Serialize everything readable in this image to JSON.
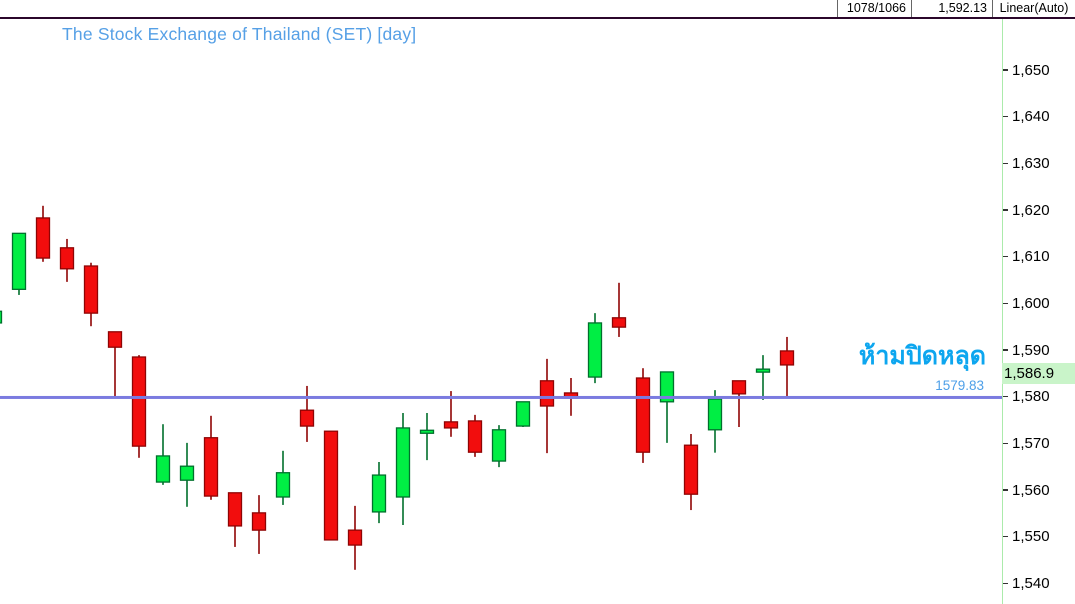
{
  "toolbar": {
    "high_low": "1078/1066",
    "last_value": "1,592.13",
    "scale_mode": "Linear(Auto)"
  },
  "colors": {
    "up_fill": "#00ee44",
    "up_stroke": "#00702c",
    "down_fill": "#f20d0d",
    "down_stroke": "#8f0404",
    "support_line": "#7b7be0",
    "axis_line": "#abebab",
    "badge_bg": "#c9f4c9",
    "title_blue": "#56a0e6",
    "annotation_blue": "#0da6ef"
  },
  "chart_data": {
    "type": "candlestick",
    "title": "The Stock Exchange of Thailand (SET) [day]",
    "annotation": {
      "text": "ห้ามปิดหลุด"
    },
    "horizontal_line": {
      "value": 1579.83,
      "label": "1579.83"
    },
    "last_price": 1586.9,
    "last_price_label": "1,586.9",
    "ylim": [
      1536,
      1661
    ],
    "grid": false,
    "y_axis": {
      "ticks": [
        {
          "v": 1650,
          "label": "1,650"
        },
        {
          "v": 1640,
          "label": "1,640"
        },
        {
          "v": 1630,
          "label": "1,630"
        },
        {
          "v": 1620,
          "label": "1,620"
        },
        {
          "v": 1610,
          "label": "1,610"
        },
        {
          "v": 1600,
          "label": "1,600"
        },
        {
          "v": 1590,
          "label": "1,590"
        },
        {
          "v": 1580,
          "label": "1,580"
        },
        {
          "v": 1570,
          "label": "1,570"
        },
        {
          "v": 1560,
          "label": "1,560"
        },
        {
          "v": 1550,
          "label": "1,550"
        },
        {
          "v": 1540,
          "label": "1,540"
        }
      ]
    },
    "candles": [
      {
        "o": 1595.8,
        "h": 1598.3,
        "l": 1595.8,
        "c": 1598.3,
        "d": "up"
      },
      {
        "o": 1603.0,
        "h": 1615.0,
        "l": 1601.8,
        "c": 1615.0,
        "d": "up"
      },
      {
        "o": 1618.3,
        "h": 1620.9,
        "l": 1608.9,
        "c": 1609.7,
        "d": "down"
      },
      {
        "o": 1611.9,
        "h": 1613.8,
        "l": 1604.6,
        "c": 1607.4,
        "d": "down"
      },
      {
        "o": 1608.0,
        "h": 1608.7,
        "l": 1595.1,
        "c": 1597.9,
        "d": "down"
      },
      {
        "o": 1593.9,
        "h": 1593.9,
        "l": 1579.9,
        "c": 1590.6,
        "d": "down"
      },
      {
        "o": 1588.5,
        "h": 1588.9,
        "l": 1566.9,
        "c": 1569.4,
        "d": "down"
      },
      {
        "o": 1561.7,
        "h": 1574.1,
        "l": 1561.1,
        "c": 1567.3,
        "d": "up"
      },
      {
        "o": 1562.1,
        "h": 1570.1,
        "l": 1556.4,
        "c": 1565.1,
        "d": "up"
      },
      {
        "o": 1571.2,
        "h": 1575.9,
        "l": 1557.9,
        "c": 1558.7,
        "d": "down"
      },
      {
        "o": 1559.4,
        "h": 1559.4,
        "l": 1547.8,
        "c": 1552.3,
        "d": "down"
      },
      {
        "o": 1555.1,
        "h": 1558.9,
        "l": 1546.3,
        "c": 1551.4,
        "d": "down"
      },
      {
        "o": 1558.5,
        "h": 1568.4,
        "l": 1556.8,
        "c": 1563.7,
        "d": "up"
      },
      {
        "o": 1577.1,
        "h": 1582.3,
        "l": 1570.3,
        "c": 1573.7,
        "d": "down"
      },
      {
        "o": 1572.6,
        "h": 1572.6,
        "l": 1549.3,
        "c": 1549.3,
        "d": "down"
      },
      {
        "o": 1551.4,
        "h": 1556.6,
        "l": 1542.9,
        "c": 1548.2,
        "d": "down"
      },
      {
        "o": 1555.3,
        "h": 1566.0,
        "l": 1552.9,
        "c": 1563.2,
        "d": "up"
      },
      {
        "o": 1558.5,
        "h": 1576.5,
        "l": 1552.5,
        "c": 1573.3,
        "d": "up"
      },
      {
        "o": 1572.2,
        "h": 1576.5,
        "l": 1566.4,
        "c": 1572.8,
        "d": "up"
      },
      {
        "o": 1574.6,
        "h": 1581.2,
        "l": 1571.4,
        "c": 1573.3,
        "d": "down"
      },
      {
        "o": 1574.8,
        "h": 1576.1,
        "l": 1567.1,
        "c": 1568.1,
        "d": "down"
      },
      {
        "o": 1566.2,
        "h": 1573.9,
        "l": 1564.9,
        "c": 1572.9,
        "d": "up"
      },
      {
        "o": 1573.7,
        "h": 1578.9,
        "l": 1573.5,
        "c": 1578.9,
        "d": "up"
      },
      {
        "o": 1583.4,
        "h": 1588.1,
        "l": 1567.9,
        "c": 1578.0,
        "d": "down"
      },
      {
        "o": 1580.8,
        "h": 1584.0,
        "l": 1575.9,
        "c": 1579.7,
        "d": "down"
      },
      {
        "o": 1584.2,
        "h": 1597.9,
        "l": 1582.9,
        "c": 1595.8,
        "d": "up"
      },
      {
        "o": 1596.9,
        "h": 1604.4,
        "l": 1592.8,
        "c": 1594.9,
        "d": "down"
      },
      {
        "o": 1584.0,
        "h": 1586.1,
        "l": 1565.8,
        "c": 1568.1,
        "d": "down"
      },
      {
        "o": 1578.9,
        "h": 1585.3,
        "l": 1570.1,
        "c": 1585.3,
        "d": "up"
      },
      {
        "o": 1569.6,
        "h": 1572.0,
        "l": 1555.7,
        "c": 1559.1,
        "d": "down"
      },
      {
        "o": 1572.9,
        "h": 1581.4,
        "l": 1568.0,
        "c": 1579.5,
        "d": "up"
      },
      {
        "o": 1583.4,
        "h": 1583.4,
        "l": 1573.5,
        "c": 1580.6,
        "d": "down"
      },
      {
        "o": 1585.9,
        "h": 1588.9,
        "l": 1579.3,
        "c": 1585.9,
        "d": "up"
      },
      {
        "o": 1589.8,
        "h": 1592.8,
        "l": 1579.9,
        "c": 1586.8,
        "d": "down"
      }
    ]
  }
}
